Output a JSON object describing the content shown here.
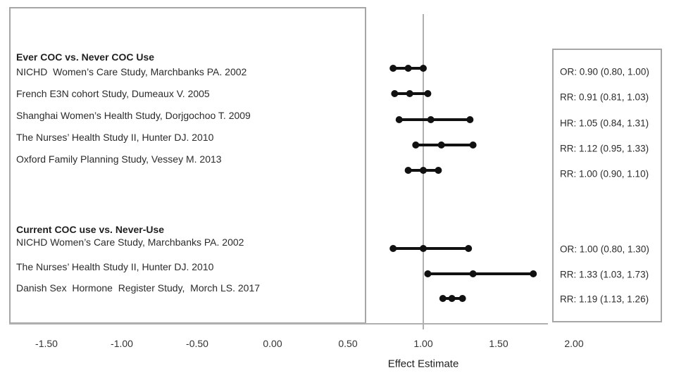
{
  "chart_data": {
    "type": "forest",
    "title": "",
    "xlabel": "Effect Estimate",
    "xlim": [
      -1.75,
      2.35
    ],
    "x_ticks": [
      -1.5,
      -1.0,
      -0.5,
      0.0,
      0.5,
      1.0,
      1.5,
      2.0
    ],
    "x_tick_labels": [
      "-1.50",
      "-1.00",
      "-0.50",
      "0.00",
      "0.50",
      "1.00",
      "1.50",
      "2.00"
    ],
    "reference_line_x": 1.0,
    "grid": false,
    "legend": "none",
    "marker_color": "#111111",
    "box_border_color": "#a6a6a6",
    "line_color": "#b0b0b0",
    "groups": [
      {
        "heading": "Ever COC vs. Never COC Use",
        "rows": [
          {
            "label": "NICHD  Women’s Care Study, Marchbanks PA. 2002",
            "measure": "OR",
            "estimate": 0.9,
            "ci_low": 0.8,
            "ci_high": 1.0,
            "value_text": "OR: 0.90 (0.80, 1.00)"
          },
          {
            "label": "French E3N cohort Study, Dumeaux V. 2005",
            "measure": "RR",
            "estimate": 0.91,
            "ci_low": 0.81,
            "ci_high": 1.03,
            "value_text": "RR: 0.91 (0.81, 1.03)"
          },
          {
            "label": "Shanghai Women’s Health Study, Dorjgochoo T. 2009",
            "measure": "HR",
            "estimate": 1.05,
            "ci_low": 0.84,
            "ci_high": 1.31,
            "value_text": "HR: 1.05 (0.84, 1.31)"
          },
          {
            "label": "The Nurses’ Health Study II, Hunter DJ. 2010",
            "measure": "RR",
            "estimate": 1.12,
            "ci_low": 0.95,
            "ci_high": 1.33,
            "value_text": "RR: 1.12 (0.95, 1.33)"
          },
          {
            "label": "Oxford Family Planning Study, Vessey M. 2013",
            "measure": "RR",
            "estimate": 1.0,
            "ci_low": 0.9,
            "ci_high": 1.1,
            "value_text": "RR: 1.00 (0.90, 1.10)"
          }
        ]
      },
      {
        "heading": "Current COC use vs. Never-Use",
        "rows": [
          {
            "label": "NICHD Women’s Care Study, Marchbanks PA. 2002",
            "measure": "OR",
            "estimate": 1.0,
            "ci_low": 0.8,
            "ci_high": 1.3,
            "value_text": "OR: 1.00 (0.80, 1.30)"
          },
          {
            "label": "The Nurses’ Health Study II, Hunter DJ. 2010",
            "measure": "RR",
            "estimate": 1.33,
            "ci_low": 1.03,
            "ci_high": 1.73,
            "value_text": "RR: 1.33 (1.03, 1.73)"
          },
          {
            "label": "Danish Sex  Hormone  Register Study,  Morch LS. 2017",
            "measure": "RR",
            "estimate": 1.19,
            "ci_low": 1.13,
            "ci_high": 1.26,
            "value_text": "RR: 1.19 (1.13, 1.26)"
          }
        ]
      }
    ]
  }
}
